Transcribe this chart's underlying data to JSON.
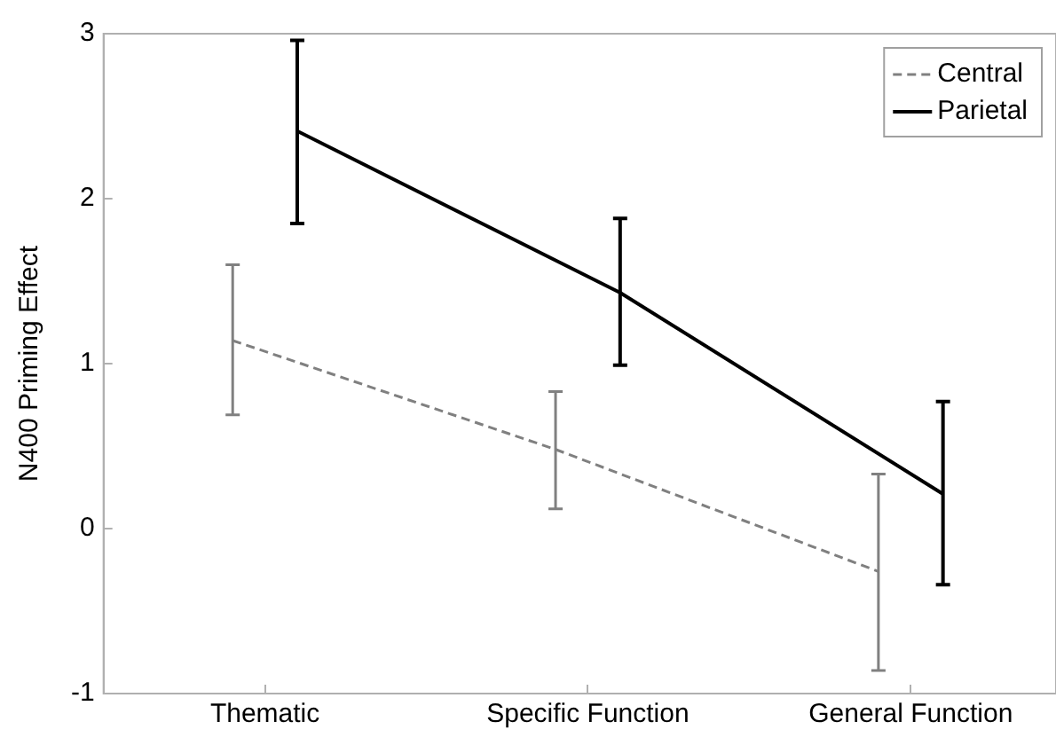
{
  "chart_data": {
    "type": "line",
    "ylabel": "N400 Priming Effect",
    "categories": [
      "Thematic",
      "Specific Function",
      "General Function"
    ],
    "series": [
      {
        "name": "Central",
        "color": "#808080",
        "line_style": "dashed",
        "values": [
          1.14,
          0.48,
          -0.26
        ],
        "errors": [
          [
            0.69,
            1.6
          ],
          [
            0.12,
            0.83
          ],
          [
            -0.86,
            0.33
          ]
        ]
      },
      {
        "name": "Parietal",
        "color": "#000000",
        "line_style": "solid",
        "values": [
          2.41,
          1.43,
          0.21
        ],
        "errors": [
          [
            1.85,
            2.96
          ],
          [
            0.99,
            1.88
          ],
          [
            -0.34,
            0.77
          ]
        ]
      }
    ],
    "ylim": [
      -1,
      3
    ],
    "yticks": [
      -1,
      0,
      1,
      2,
      3
    ],
    "grid": false,
    "legend": "top right",
    "marker": "none"
  }
}
